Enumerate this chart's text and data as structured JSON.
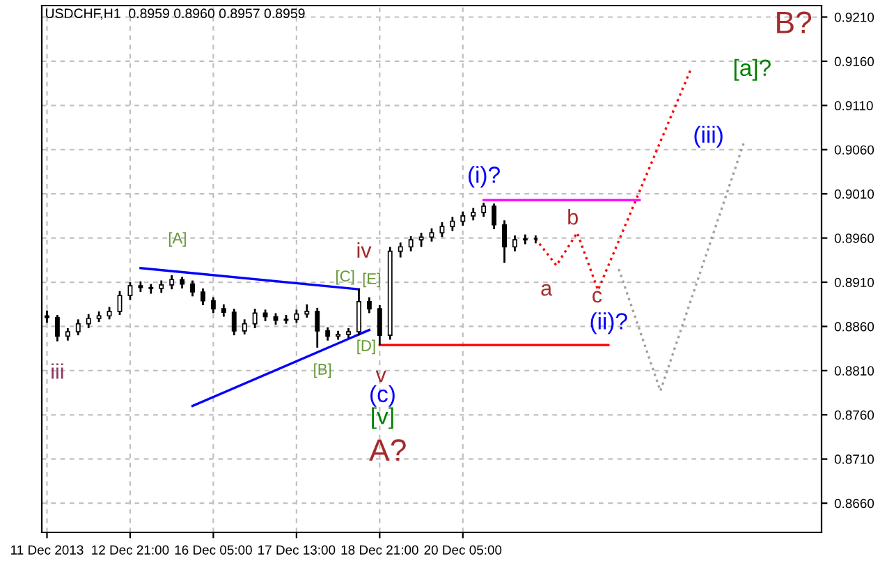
{
  "chart_data": {
    "type": "candlestick",
    "title": "USDCHF,H1  0.8959 0.8960 0.8957 0.8959",
    "color": "#000000",
    "categories": [
      "11 Dec 2013",
      null,
      null,
      null,
      null,
      null,
      null,
      null,
      "12 Dec 21:00",
      null,
      null,
      null,
      null,
      null,
      null,
      null,
      "16 Dec 05:00",
      null,
      null,
      null,
      null,
      null,
      null,
      null,
      "17 Dec 13:00",
      null,
      null,
      null,
      null,
      null,
      null,
      null,
      "18 Dec 21:00",
      null,
      null,
      null,
      null,
      null,
      null,
      null,
      "20 Dec 05:00",
      null,
      null,
      null,
      null,
      null,
      null,
      null,
      null,
      null,
      null,
      null,
      null,
      null,
      null,
      null,
      null,
      null,
      null,
      null,
      null,
      null,
      null,
      null,
      null,
      null,
      null,
      null,
      null,
      null,
      null,
      null,
      null,
      null,
      null
    ],
    "ohlc": [
      [
        0.8872,
        0.8878,
        0.8864,
        0.887
      ],
      [
        0.887,
        0.8873,
        0.8843,
        0.8849
      ],
      [
        0.8849,
        0.8858,
        0.8844,
        0.8854
      ],
      [
        0.8854,
        0.8868,
        0.885,
        0.8863
      ],
      [
        0.8863,
        0.8874,
        0.8858,
        0.8869
      ],
      [
        0.8869,
        0.8877,
        0.8865,
        0.8872
      ],
      [
        0.8872,
        0.8882,
        0.8868,
        0.8877
      ],
      [
        0.8877,
        0.89,
        0.8873,
        0.8895
      ],
      [
        0.8895,
        0.891,
        0.889,
        0.8906
      ],
      [
        0.8906,
        0.8911,
        0.8899,
        0.8904
      ],
      [
        0.8904,
        0.8908,
        0.8897,
        0.8903
      ],
      [
        0.8903,
        0.8912,
        0.8898,
        0.8907
      ],
      [
        0.8907,
        0.8918,
        0.8902,
        0.8913
      ],
      [
        0.8913,
        0.8916,
        0.8903,
        0.8908
      ],
      [
        0.8908,
        0.8912,
        0.8894,
        0.8899
      ],
      [
        0.8899,
        0.8903,
        0.8884,
        0.8889
      ],
      [
        0.8889,
        0.8893,
        0.8875,
        0.888
      ],
      [
        0.888,
        0.8885,
        0.8871,
        0.8876
      ],
      [
        0.8876,
        0.888,
        0.885,
        0.8855
      ],
      [
        0.8855,
        0.8868,
        0.8851,
        0.8863
      ],
      [
        0.8863,
        0.888,
        0.8858,
        0.8875
      ],
      [
        0.8875,
        0.8879,
        0.8866,
        0.8871
      ],
      [
        0.8871,
        0.8875,
        0.8862,
        0.8867
      ],
      [
        0.8867,
        0.8873,
        0.8863,
        0.8868
      ],
      [
        0.8868,
        0.8879,
        0.8864,
        0.8874
      ],
      [
        0.8874,
        0.8885,
        0.887,
        0.8877
      ],
      [
        0.8877,
        0.8881,
        0.8836,
        0.8855
      ],
      [
        0.8855,
        0.8859,
        0.8844,
        0.8849
      ],
      [
        0.8849,
        0.8855,
        0.8845,
        0.8851
      ],
      [
        0.8851,
        0.8858,
        0.8847,
        0.8854
      ],
      [
        0.8854,
        0.8903,
        0.885,
        0.8888
      ],
      [
        0.8888,
        0.8893,
        0.8875,
        0.888
      ],
      [
        0.888,
        0.8884,
        0.8839,
        0.885
      ],
      [
        0.885,
        0.895,
        0.8845,
        0.8945
      ],
      [
        0.8945,
        0.8955,
        0.8938,
        0.895
      ],
      [
        0.895,
        0.8962,
        0.8945,
        0.8958
      ],
      [
        0.8958,
        0.8966,
        0.895,
        0.8961
      ],
      [
        0.8961,
        0.8971,
        0.8956,
        0.8966
      ],
      [
        0.8966,
        0.8978,
        0.8961,
        0.8973
      ],
      [
        0.8973,
        0.8984,
        0.8968,
        0.8979
      ],
      [
        0.8979,
        0.899,
        0.8974,
        0.8985
      ],
      [
        0.8985,
        0.8994,
        0.898,
        0.8989
      ],
      [
        0.8989,
        0.9,
        0.8984,
        0.8996
      ],
      [
        0.8996,
        0.8999,
        0.897,
        0.8975
      ],
      [
        0.8975,
        0.898,
        0.8932,
        0.895
      ],
      [
        0.895,
        0.8963,
        0.8945,
        0.8958
      ],
      [
        0.8958,
        0.8964,
        0.8953,
        0.8959
      ],
      [
        0.8959,
        0.8963,
        0.8954,
        0.8959
      ],
      null,
      null,
      null,
      null,
      null,
      null,
      null,
      null,
      null,
      null,
      null,
      null,
      null,
      null,
      null,
      null,
      null,
      null,
      null,
      null,
      null,
      null,
      null,
      null,
      null,
      null,
      null
    ],
    "series": [
      {
        "type": "line",
        "color": "#0000ff",
        "line_style": "solid",
        "values": [
          null,
          null,
          null,
          null,
          null,
          null,
          null,
          null,
          null,
          0.8926,
          null,
          null,
          null,
          null,
          null,
          null,
          null,
          null,
          null,
          null,
          null,
          null,
          null,
          null,
          null,
          null,
          null,
          null,
          null,
          null,
          0.8902,
          null,
          null,
          null,
          null,
          null,
          null,
          null,
          null,
          null,
          null,
          null,
          null,
          null,
          null,
          null,
          null,
          null,
          null,
          null,
          null,
          null,
          null,
          null,
          null,
          null,
          null,
          null,
          null,
          null,
          null,
          null,
          null,
          null,
          null,
          null,
          null,
          null,
          null,
          null,
          null,
          null,
          null,
          null,
          null
        ]
      },
      {
        "type": "line",
        "color": "#0000ff",
        "line_style": "solid",
        "values": [
          null,
          null,
          null,
          null,
          null,
          null,
          null,
          null,
          null,
          null,
          null,
          null,
          null,
          null,
          0.877,
          null,
          null,
          null,
          null,
          null,
          null,
          null,
          null,
          null,
          null,
          null,
          null,
          null,
          null,
          null,
          null,
          0.8856,
          null,
          null,
          null,
          null,
          null,
          null,
          null,
          null,
          null,
          null,
          null,
          null,
          null,
          null,
          null,
          null,
          null,
          null,
          null,
          null,
          null,
          null,
          null,
          null,
          null,
          null,
          null,
          null,
          null,
          null,
          null,
          null,
          null,
          null,
          null,
          null,
          null,
          null,
          null,
          null,
          null,
          null,
          null
        ]
      },
      {
        "type": "line",
        "color": "#ff00ff",
        "line_style": "solid",
        "values": [
          null,
          null,
          null,
          null,
          null,
          null,
          null,
          null,
          null,
          null,
          null,
          null,
          null,
          null,
          null,
          null,
          null,
          null,
          null,
          null,
          null,
          null,
          null,
          null,
          null,
          null,
          null,
          null,
          null,
          null,
          null,
          null,
          null,
          null,
          null,
          null,
          null,
          null,
          null,
          null,
          null,
          null,
          0.9003,
          null,
          null,
          null,
          null,
          null,
          null,
          null,
          null,
          null,
          null,
          null,
          null,
          null,
          null,
          0.9003,
          null,
          null,
          null,
          null,
          null,
          null,
          null,
          null,
          null,
          null,
          null,
          null,
          null,
          null,
          null,
          null,
          null
        ]
      },
      {
        "type": "line",
        "color": "#ff0000",
        "line_style": "solid",
        "values": [
          null,
          null,
          null,
          null,
          null,
          null,
          null,
          null,
          null,
          null,
          null,
          null,
          null,
          null,
          null,
          null,
          null,
          null,
          null,
          null,
          null,
          null,
          null,
          null,
          null,
          null,
          null,
          null,
          null,
          null,
          null,
          null,
          0.8839,
          null,
          null,
          null,
          null,
          null,
          null,
          null,
          null,
          null,
          null,
          null,
          null,
          null,
          null,
          null,
          null,
          null,
          null,
          null,
          null,
          null,
          0.8839,
          null,
          null,
          null,
          null,
          null,
          null,
          null,
          null,
          null,
          null,
          null,
          null,
          null,
          null,
          null,
          null,
          null,
          null,
          null,
          null
        ]
      },
      {
        "type": "line",
        "color": "#ff0000",
        "line_style": "dotted",
        "values": [
          null,
          null,
          null,
          null,
          null,
          null,
          null,
          null,
          null,
          null,
          null,
          null,
          null,
          null,
          null,
          null,
          null,
          null,
          null,
          null,
          null,
          null,
          null,
          null,
          null,
          null,
          null,
          null,
          null,
          null,
          null,
          null,
          null,
          null,
          null,
          null,
          null,
          null,
          null,
          null,
          null,
          null,
          null,
          null,
          null,
          null,
          null,
          0.8959,
          null,
          0.8929,
          null,
          0.8966,
          null,
          0.8901,
          null,
          null,
          null,
          null,
          null,
          null,
          null,
          null,
          0.9153,
          null,
          null,
          null,
          null,
          null,
          null,
          null,
          null,
          null,
          null,
          null,
          null
        ]
      },
      {
        "type": "line",
        "color": "#a0a0a0",
        "line_style": "dotted",
        "values": [
          null,
          null,
          null,
          null,
          null,
          null,
          null,
          null,
          null,
          null,
          null,
          null,
          null,
          null,
          null,
          null,
          null,
          null,
          null,
          null,
          null,
          null,
          null,
          null,
          null,
          null,
          null,
          null,
          null,
          null,
          null,
          null,
          null,
          null,
          null,
          null,
          null,
          null,
          null,
          null,
          null,
          null,
          null,
          null,
          null,
          null,
          null,
          null,
          null,
          null,
          null,
          null,
          null,
          null,
          null,
          0.8925,
          null,
          null,
          null,
          0.8787,
          null,
          null,
          null,
          null,
          null,
          null,
          null,
          0.9067,
          null,
          null,
          null,
          null,
          null,
          null,
          null
        ]
      }
    ],
    "ylim": [
      0.8627,
      0.9223
    ],
    "yticks": [
      {
        "value": 0.866,
        "label": "0.8660"
      },
      {
        "value": 0.871,
        "label": "0.8710"
      },
      {
        "value": 0.876,
        "label": "0.8760"
      },
      {
        "value": 0.881,
        "label": "0.8810"
      },
      {
        "value": 0.886,
        "label": "0.8860"
      },
      {
        "value": 0.891,
        "label": "0.8910"
      },
      {
        "value": 0.896,
        "label": "0.8960"
      },
      {
        "value": 0.901,
        "label": "0.9010"
      },
      {
        "value": 0.906,
        "label": "0.9060"
      },
      {
        "value": 0.911,
        "label": "0.9110"
      },
      {
        "value": 0.916,
        "label": "0.9160"
      },
      {
        "value": 0.921,
        "label": "0.9210"
      }
    ],
    "grid": true,
    "annotations": [
      "B?",
      "[a]?",
      "(iii)",
      "(i)?",
      "b",
      "a",
      "c",
      "(ii)?",
      "[A]",
      "[C]",
      "[E]",
      "iv",
      "[D]",
      "[B]",
      "iii",
      "v",
      "(c)",
      "[v]",
      "A?"
    ]
  }
}
